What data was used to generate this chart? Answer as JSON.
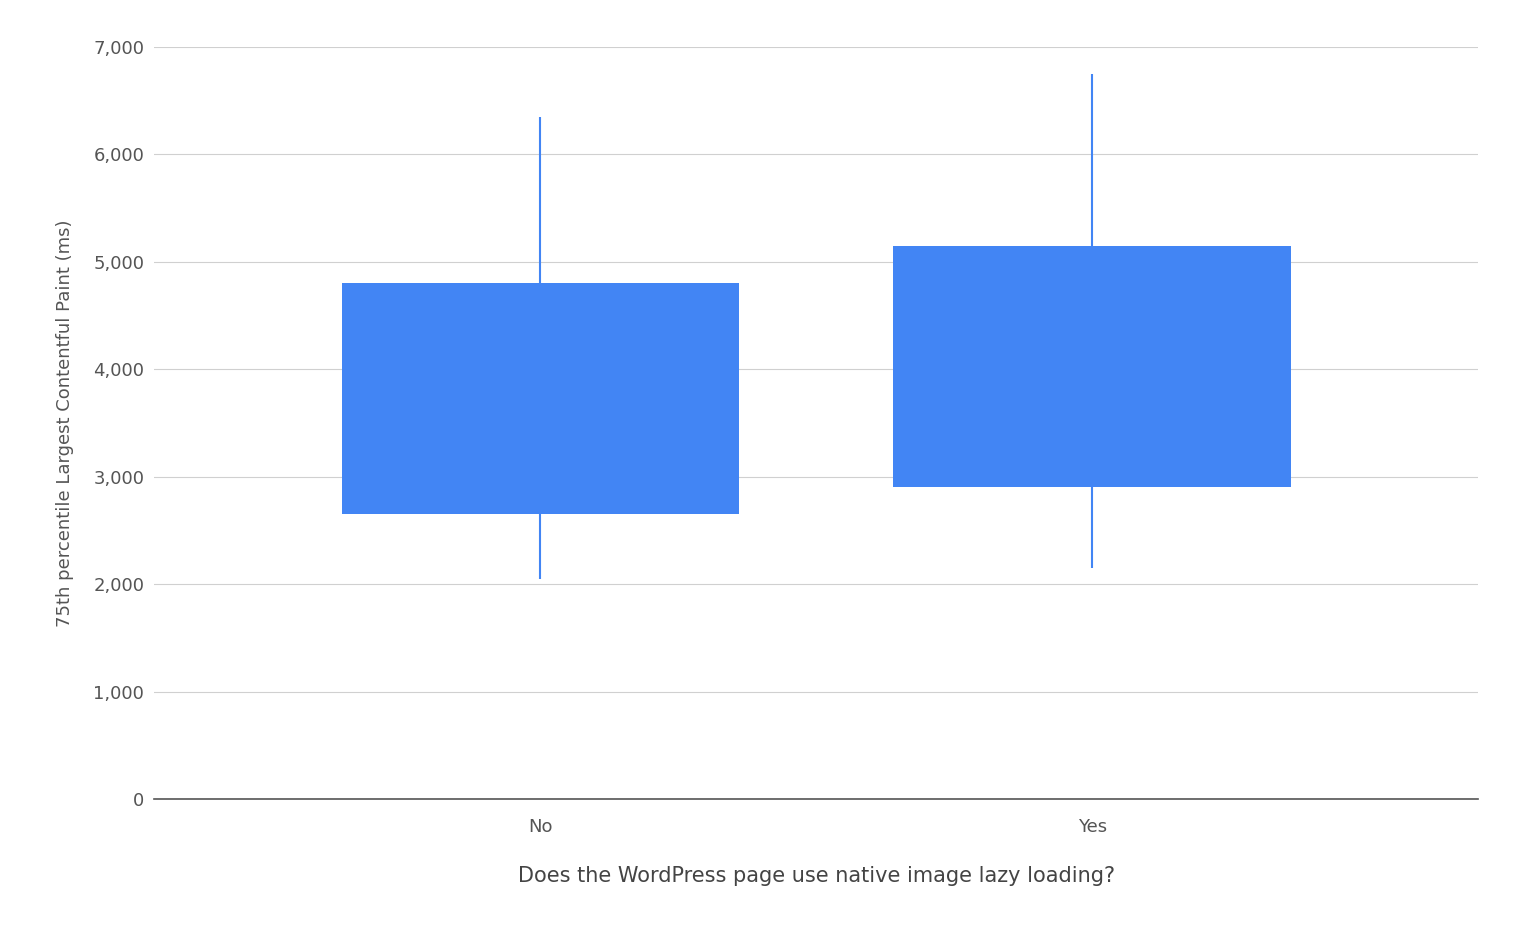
{
  "categories": [
    "No",
    "Yes"
  ],
  "p10": [
    2050,
    2150
  ],
  "p25": [
    2650,
    2900
  ],
  "p75": [
    4800,
    5150
  ],
  "p90": [
    6350,
    6750
  ],
  "box_color": "#4285F4",
  "whisker_color": "#4285F4",
  "ylabel": "75th percentile Largest Contentful Paint (ms)",
  "xlabel": "Does the WordPress page use native image lazy loading?",
  "ylim": [
    0,
    7000
  ],
  "yticks": [
    0,
    1000,
    2000,
    3000,
    4000,
    5000,
    6000,
    7000
  ],
  "ytick_labels": [
    "0",
    "1,000",
    "2,000",
    "3,000",
    "4,000",
    "5,000",
    "6,000",
    "7,000"
  ],
  "background_color": "#ffffff",
  "grid_color": "#d0d0d0",
  "box_width": 0.72,
  "xlabel_fontsize": 15,
  "ylabel_fontsize": 13,
  "tick_fontsize": 13
}
